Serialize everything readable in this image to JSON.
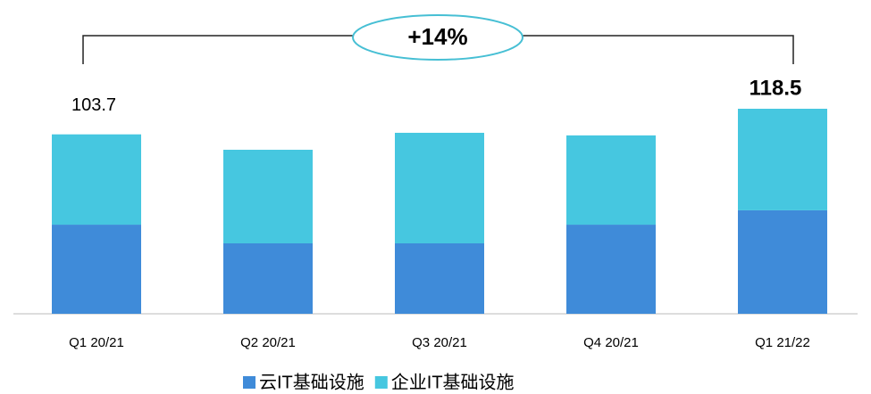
{
  "chart_data": {
    "type": "stacked_bar",
    "annotation": "+14%",
    "categories": [
      "Q1 20/21",
      "Q2 20/21",
      "Q3 20/21",
      "Q4 20/21",
      "Q1 21/22"
    ],
    "series": [
      {
        "name": "云IT基础设施",
        "color": "#3f8bd9",
        "values": [
          51.5,
          40.7,
          40.7,
          51.5,
          59.8
        ]
      },
      {
        "name": "企业IT基础设施",
        "color": "#46c7e0",
        "values": [
          52.2,
          54.1,
          63.9,
          51.6,
          58.7
        ]
      }
    ],
    "totals": [
      {
        "category": "Q1 20/21",
        "value": 103.7
      },
      {
        "category": "Q1 21/22",
        "value": 118.5
      }
    ]
  }
}
